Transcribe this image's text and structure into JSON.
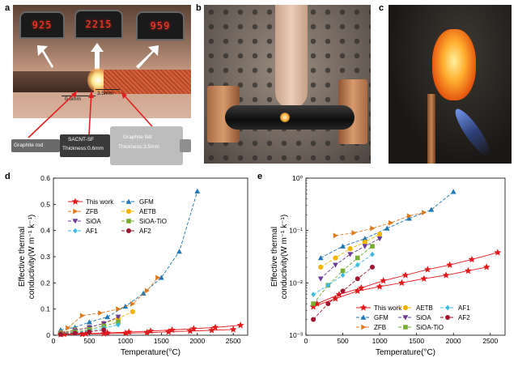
{
  "panels": {
    "a": {
      "letter": "a",
      "readouts": [
        "925",
        "2215",
        "959"
      ],
      "dim1": "0.6mm",
      "dim2": "3.5mm",
      "rod_label": "Graphite rod",
      "sf_label_1": "SACNT-SF",
      "sf_label_2": "Thickness:0.6mm",
      "felt_label_1": "Graphite felt",
      "felt_label_2": "Thickness:3.5mm"
    },
    "b": {
      "letter": "b"
    },
    "c": {
      "letter": "c"
    },
    "d": {
      "letter": "d"
    },
    "e": {
      "letter": "e"
    }
  },
  "colors": {
    "this_work": "#e31a1c",
    "GFM": "#1f77b4",
    "ZFB": "#e07a1f",
    "AETB": "#f5b400",
    "SiOA": "#6a3d9a",
    "SiOA-TiO": "#77ac30",
    "AF1": "#3bbbe0",
    "AF2": "#a2142f"
  },
  "chart_data": [
    {
      "type": "line",
      "panel": "d",
      "xlabel": "Temperature(°C)",
      "ylabel_1": "Effective thermal",
      "ylabel_2": "conductivity(W m⁻¹ k⁻¹)",
      "xlim": [
        0,
        2700
      ],
      "ylim": [
        0,
        0.6
      ],
      "xticks": [
        "0",
        "500",
        "1000",
        "1500",
        "2000",
        "2500"
      ],
      "yticks": [
        "0",
        "0.1",
        "0.2",
        "0.3",
        "0.4",
        "0.5",
        "0.6"
      ],
      "legend": [
        "This work",
        "GFM",
        "ZFB",
        "AETB",
        "SiOA",
        "SiOA-TiO",
        "AF1",
        "AF2"
      ],
      "series": [
        {
          "name": "This work",
          "key": "this_work",
          "marker": "star",
          "dash": "",
          "points": [
            [
              100,
              0.003
            ],
            [
              400,
              0.004
            ],
            [
              700,
              0.006
            ],
            [
              1000,
              0.008
            ],
            [
              1300,
              0.01
            ],
            [
              1600,
              0.013
            ],
            [
              1900,
              0.016
            ],
            [
              2200,
              0.019
            ],
            [
              2500,
              0.022
            ]
          ]
        },
        {
          "name": "This work",
          "key": "this_work",
          "marker": "star",
          "dash": "",
          "points": [
            [
              150,
              0.004
            ],
            [
              450,
              0.006
            ],
            [
              750,
              0.009
            ],
            [
              1050,
              0.012
            ],
            [
              1350,
              0.016
            ],
            [
              1650,
              0.02
            ],
            [
              1950,
              0.025
            ],
            [
              2250,
              0.03
            ],
            [
              2600,
              0.038
            ]
          ]
        },
        {
          "name": "GFM",
          "key": "GFM",
          "marker": "triup",
          "dash": "4,2",
          "points": [
            [
              100,
              0.02
            ],
            [
              300,
              0.03
            ],
            [
              500,
              0.05
            ],
            [
              750,
              0.07
            ],
            [
              1000,
              0.11
            ],
            [
              1250,
              0.16
            ],
            [
              1500,
              0.22
            ],
            [
              1750,
              0.32
            ],
            [
              2000,
              0.55
            ]
          ]
        },
        {
          "name": "ZFB",
          "key": "ZFB",
          "marker": "triright",
          "dash": "4,2",
          "points": [
            [
              200,
              0.028
            ],
            [
              400,
              0.075
            ],
            [
              650,
              0.085
            ],
            [
              900,
              0.1
            ],
            [
              1100,
              0.12
            ],
            [
              1300,
              0.17
            ],
            [
              1450,
              0.22
            ]
          ]
        },
        {
          "name": "AETB",
          "key": "AETB",
          "marker": "hexagon",
          "dash": "4,2",
          "points": [
            [
              100,
              0.01
            ],
            [
              300,
              0.02
            ],
            [
              500,
              0.03
            ],
            [
              700,
              0.045
            ],
            [
              900,
              0.065
            ],
            [
              1100,
              0.09
            ]
          ]
        },
        {
          "name": "SiOA",
          "key": "SiOA",
          "marker": "tridown",
          "dash": "4,2",
          "points": [
            [
              100,
              0.008
            ],
            [
              300,
              0.018
            ],
            [
              500,
              0.03
            ],
            [
              700,
              0.045
            ],
            [
              900,
              0.07
            ]
          ]
        },
        {
          "name": "SiOA-TiO",
          "key": "SiOA-TiO",
          "marker": "square",
          "dash": "4,2",
          "points": [
            [
              100,
              0.006
            ],
            [
              300,
              0.013
            ],
            [
              500,
              0.022
            ],
            [
              700,
              0.035
            ],
            [
              900,
              0.05
            ]
          ]
        },
        {
          "name": "AF1",
          "key": "AF1",
          "marker": "diamond",
          "dash": "4,2",
          "points": [
            [
              100,
              0.005
            ],
            [
              300,
              0.01
            ],
            [
              500,
              0.017
            ],
            [
              700,
              0.027
            ],
            [
              900,
              0.04
            ]
          ]
        },
        {
          "name": "AF2",
          "key": "AF2",
          "marker": "circle",
          "dash": "4,2",
          "points": [
            [
              100,
              0.004
            ],
            [
              300,
              0.008
            ],
            [
              500,
              0.013
            ],
            [
              700,
              0.02
            ]
          ]
        }
      ]
    },
    {
      "type": "line",
      "panel": "e",
      "scale_y": "log",
      "xlabel": "Temperature(°C)",
      "ylabel_1": "Effective thermal",
      "ylabel_2": "conductivity(W m⁻¹ k⁻¹)",
      "xlim": [
        0,
        2700
      ],
      "ylim": [
        0.001,
        1
      ],
      "xticks": [
        "0",
        "500",
        "1000",
        "1500",
        "2000",
        "2500"
      ],
      "yticks": [
        "10⁻³",
        "10⁻²",
        "10⁻¹",
        "10⁰"
      ],
      "legend": [
        "This work",
        "AETB",
        "AF1",
        "GFM",
        "SiOA",
        "AF2",
        "ZFB",
        "SiOA-TiO"
      ],
      "series": [
        {
          "name": "This work",
          "key": "this_work",
          "marker": "star",
          "dash": "",
          "points": [
            [
              100,
              0.0035
            ],
            [
              400,
              0.005
            ],
            [
              700,
              0.007
            ],
            [
              1000,
              0.0085
            ],
            [
              1300,
              0.01
            ],
            [
              1600,
              0.012
            ],
            [
              1900,
              0.014
            ],
            [
              2200,
              0.017
            ],
            [
              2450,
              0.02
            ]
          ]
        },
        {
          "name": "This work",
          "key": "this_work",
          "marker": "star",
          "dash": "",
          "points": [
            [
              150,
              0.004
            ],
            [
              450,
              0.006
            ],
            [
              750,
              0.008
            ],
            [
              1050,
              0.011
            ],
            [
              1350,
              0.014
            ],
            [
              1650,
              0.018
            ],
            [
              1950,
              0.022
            ],
            [
              2250,
              0.028
            ],
            [
              2600,
              0.038
            ]
          ]
        },
        {
          "name": "GFM",
          "key": "GFM",
          "marker": "triup",
          "dash": "4,2",
          "points": [
            [
              200,
              0.03
            ],
            [
              500,
              0.05
            ],
            [
              800,
              0.07
            ],
            [
              1100,
              0.11
            ],
            [
              1400,
              0.17
            ],
            [
              1700,
              0.25
            ],
            [
              2000,
              0.55
            ]
          ]
        },
        {
          "name": "ZFB",
          "key": "ZFB",
          "marker": "triright",
          "dash": "4,2",
          "points": [
            [
              400,
              0.08
            ],
            [
              650,
              0.09
            ],
            [
              900,
              0.11
            ],
            [
              1150,
              0.14
            ],
            [
              1400,
              0.19
            ],
            [
              1600,
              0.22
            ]
          ]
        },
        {
          "name": "AETB",
          "key": "AETB",
          "marker": "hexagon",
          "dash": "4,2",
          "points": [
            [
              200,
              0.02
            ],
            [
              400,
              0.03
            ],
            [
              600,
              0.045
            ],
            [
              800,
              0.06
            ],
            [
              1000,
              0.085
            ]
          ]
        },
        {
          "name": "SiOA",
          "key": "SiOA",
          "marker": "tridown",
          "dash": "4,2",
          "points": [
            [
              200,
              0.012
            ],
            [
              400,
              0.022
            ],
            [
              600,
              0.035
            ],
            [
              800,
              0.05
            ],
            [
              1000,
              0.07
            ]
          ]
        },
        {
          "name": "SiOA-TiO",
          "key": "SiOA-TiO",
          "marker": "square",
          "dash": "4,2",
          "points": [
            [
              100,
              0.004
            ],
            [
              300,
              0.009
            ],
            [
              500,
              0.017
            ],
            [
              700,
              0.03
            ],
            [
              900,
              0.05
            ]
          ]
        },
        {
          "name": "AF1",
          "key": "AF1",
          "marker": "diamond",
          "dash": "4,2",
          "points": [
            [
              100,
              0.006
            ],
            [
              300,
              0.009
            ],
            [
              500,
              0.014
            ],
            [
              700,
              0.022
            ],
            [
              900,
              0.035
            ]
          ]
        },
        {
          "name": "AF2",
          "key": "AF2",
          "marker": "circle",
          "dash": "4,2",
          "points": [
            [
              100,
              0.002
            ],
            [
              300,
              0.004
            ],
            [
              500,
              0.007
            ],
            [
              700,
              0.012
            ],
            [
              900,
              0.02
            ]
          ]
        }
      ]
    }
  ]
}
